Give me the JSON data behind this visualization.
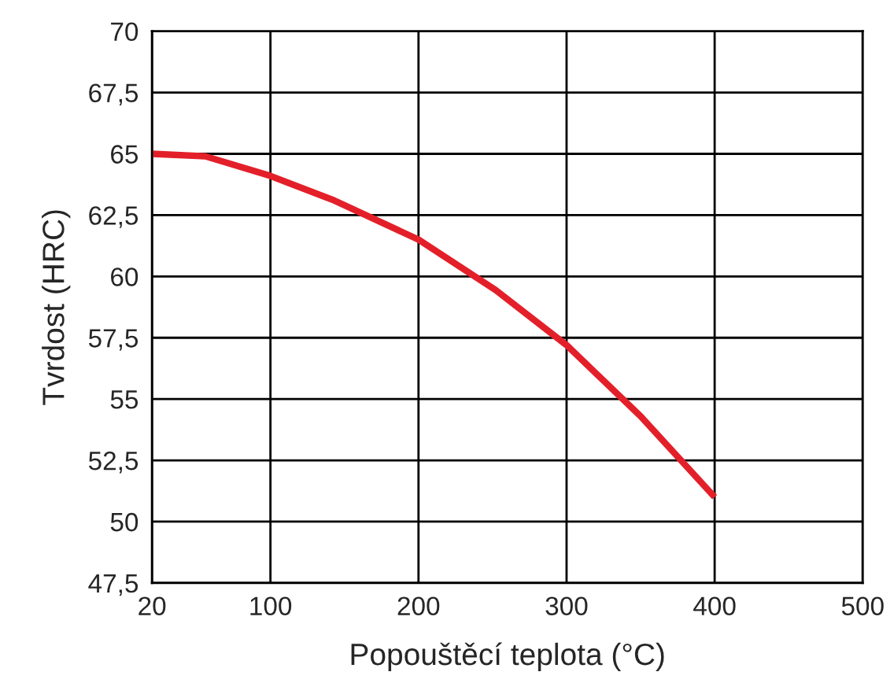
{
  "chart_data": {
    "type": "line",
    "xlabel": "Popouštěcí teplota (°C)",
    "ylabel": "Tvrdost (HRC)",
    "x": [
      20,
      56,
      100,
      143,
      200,
      252,
      300,
      350,
      400
    ],
    "series": [
      {
        "color": "#e3202a",
        "values": [
          65.0,
          64.9,
          64.1,
          63.1,
          61.5,
          59.45,
          57.2,
          54.3,
          51.0
        ]
      }
    ],
    "xlim": [
      20,
      500
    ],
    "xticks": [
      20,
      100,
      200,
      300,
      400,
      500
    ],
    "ylim": [
      47.5,
      70
    ],
    "yticks": [
      {
        "value": 47.5,
        "label": "47,5"
      },
      50,
      {
        "value": 52.5,
        "label": "52,5"
      },
      55,
      {
        "value": 57.5,
        "label": "57,5"
      },
      60,
      {
        "value": 62.5,
        "label": "62,5"
      },
      65,
      {
        "value": 67.5,
        "label": "67,5"
      },
      70
    ],
    "grid": true,
    "line_style": "solid"
  }
}
